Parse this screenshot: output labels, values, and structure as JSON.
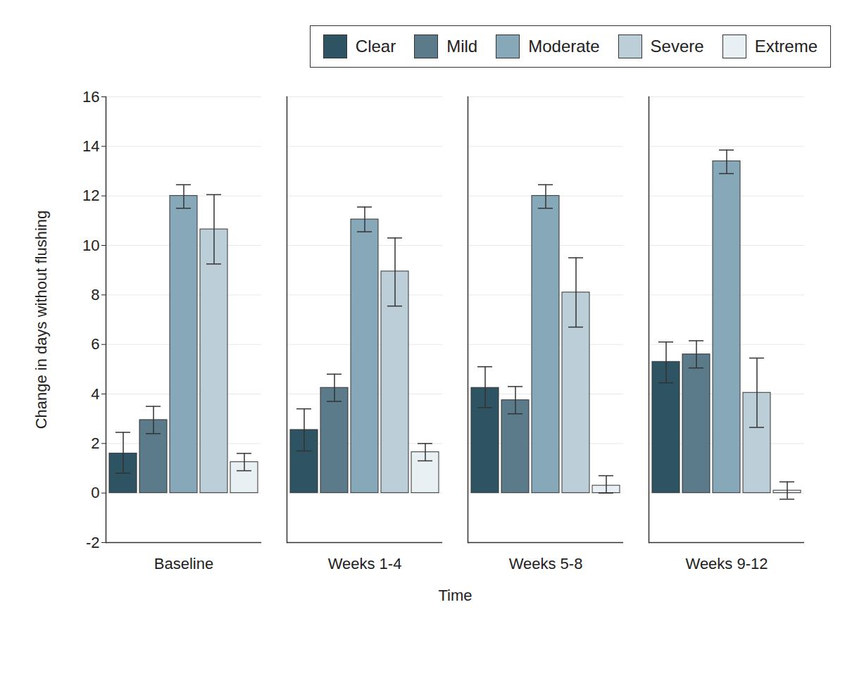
{
  "chart_data": {
    "type": "bar",
    "x_label": "Time",
    "y_label": "Change in days without flushing",
    "categories": [
      "Baseline",
      "Weeks 1-4",
      "Weeks 5-8",
      "Weeks 9-12"
    ],
    "series": [
      {
        "name": "Clear",
        "color": "#2e5464",
        "values": [
          1.6,
          2.55,
          4.25,
          5.3
        ],
        "error_low": [
          0.8,
          1.7,
          3.45,
          4.45
        ],
        "error_high": [
          2.45,
          3.4,
          5.1,
          6.1
        ]
      },
      {
        "name": "Mild",
        "color": "#5b7b8a",
        "values": [
          2.95,
          4.25,
          3.75,
          5.6
        ],
        "error_low": [
          2.4,
          3.7,
          3.2,
          5.05
        ],
        "error_high": [
          3.5,
          4.8,
          4.3,
          6.15
        ]
      },
      {
        "name": "Moderate",
        "color": "#87a8b8",
        "values": [
          12.0,
          11.05,
          12.0,
          13.4
        ],
        "error_low": [
          11.5,
          10.55,
          11.5,
          12.9
        ],
        "error_high": [
          12.45,
          11.55,
          12.45,
          13.85
        ]
      },
      {
        "name": "Severe",
        "color": "#bccfd9",
        "values": [
          10.65,
          8.95,
          8.1,
          4.05
        ],
        "error_low": [
          9.25,
          7.55,
          6.7,
          2.65
        ],
        "error_high": [
          12.05,
          10.3,
          9.5,
          5.45
        ]
      },
      {
        "name": "Extreme",
        "color": "#e8f0f3",
        "values": [
          1.25,
          1.65,
          0.3,
          0.1
        ],
        "error_low": [
          0.9,
          1.3,
          0.0,
          -0.25
        ],
        "error_high": [
          1.6,
          2.0,
          0.7,
          0.45
        ]
      }
    ],
    "ylim": [
      -2,
      16
    ],
    "yticks": [
      -2,
      0,
      2,
      4,
      6,
      8,
      10,
      12,
      14,
      16
    ],
    "grid": true,
    "legend": "top-right"
  }
}
